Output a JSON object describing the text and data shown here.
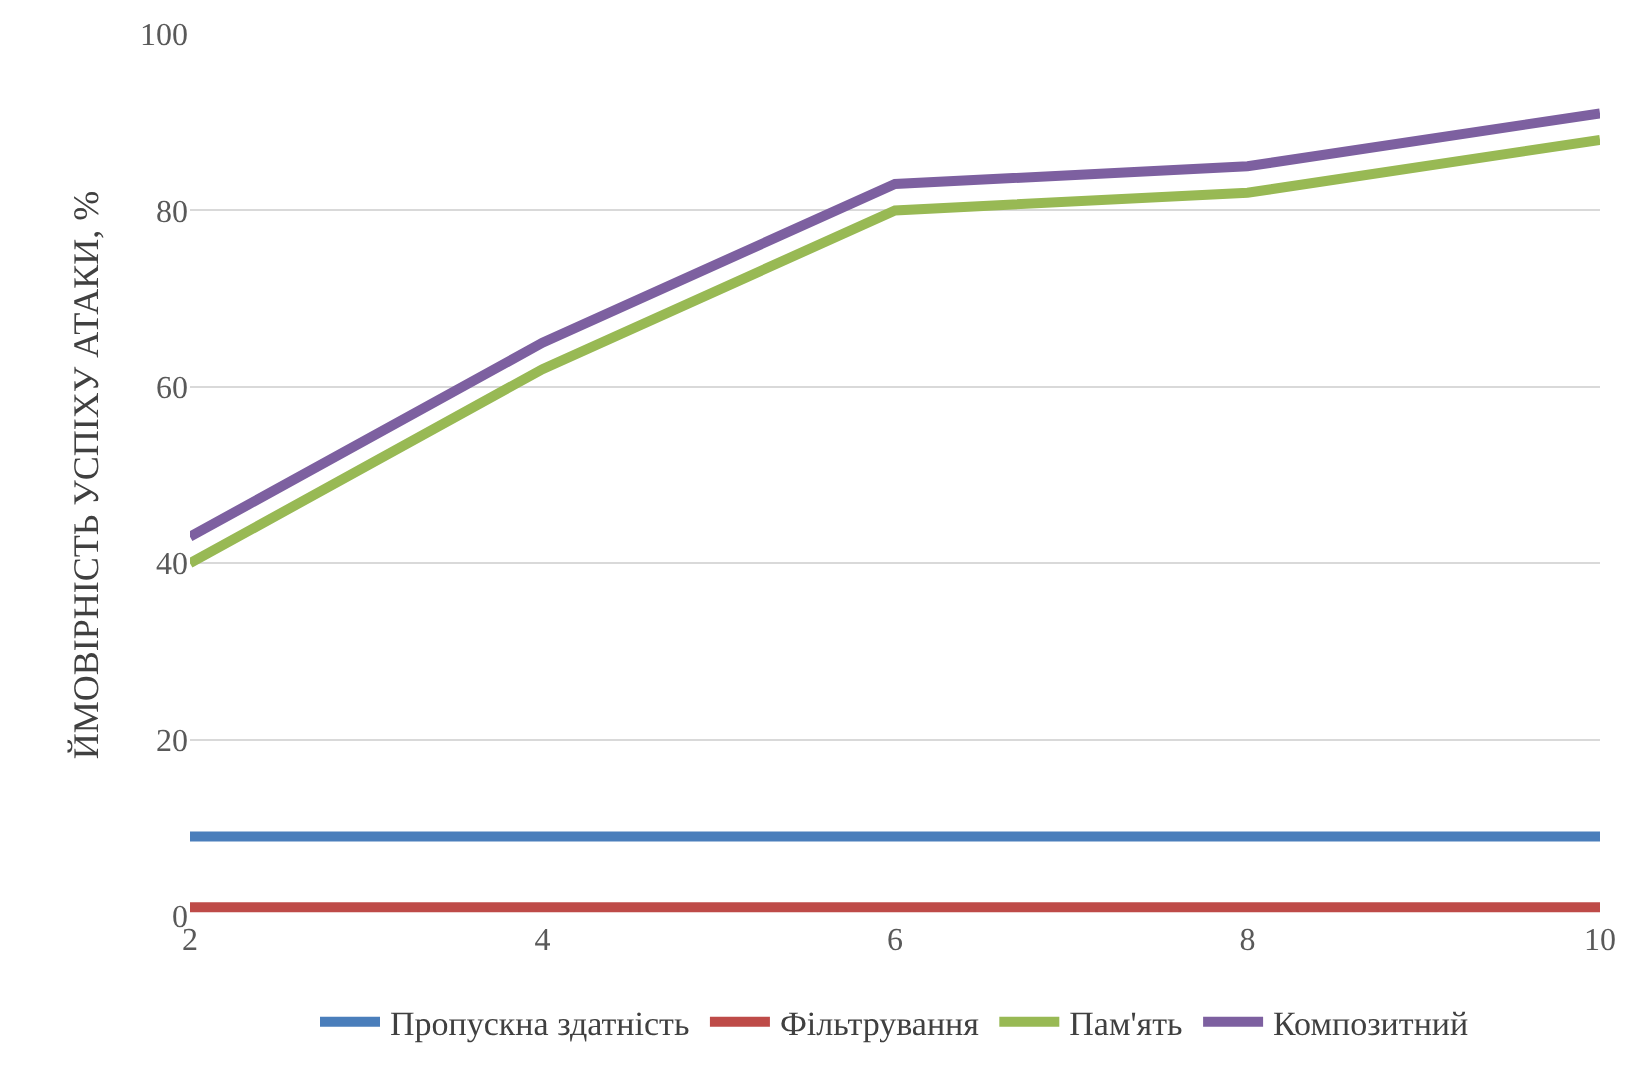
{
  "chart_data": {
    "type": "line",
    "ylabel": "ЙМОВІРНІСТЬ УСПІХУ АТАКИ, %",
    "x": [
      2,
      4,
      6,
      8,
      10
    ],
    "xlim": [
      2,
      10
    ],
    "xticks": [
      2,
      4,
      6,
      8,
      10
    ],
    "ylim": [
      0,
      100
    ],
    "yticks": [
      0,
      20,
      40,
      60,
      80,
      100
    ],
    "grid": "y",
    "legend": "bottom",
    "marker": "none",
    "line_style": "solid",
    "series": [
      {
        "name": "Пропускна здатність",
        "color": "#4a7ebb",
        "values": [
          9,
          9,
          9,
          9,
          9
        ]
      },
      {
        "name": "Фільтрування",
        "color": "#be4b48",
        "values": [
          1,
          1,
          1,
          1,
          1
        ]
      },
      {
        "name": "Пам'ять",
        "color": "#98b954",
        "values": [
          40,
          62,
          80,
          82,
          88
        ]
      },
      {
        "name": "Композитний",
        "color": "#7d60a0",
        "values": [
          43,
          65,
          83,
          85,
          91
        ]
      }
    ]
  }
}
